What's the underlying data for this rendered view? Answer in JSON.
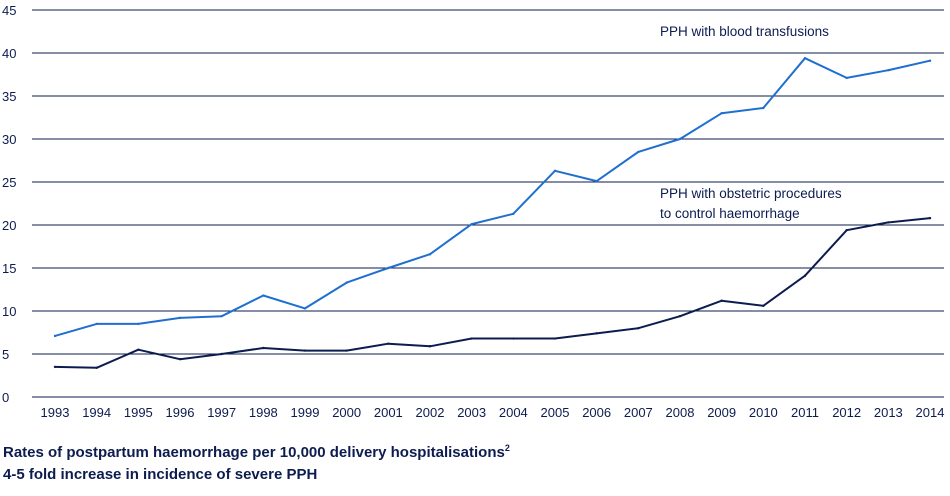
{
  "chart_data": {
    "type": "line",
    "x": [
      "1993",
      "1994",
      "1995",
      "1996",
      "1997",
      "1998",
      "1999",
      "2000",
      "2001",
      "2002",
      "2003",
      "2004",
      "2005",
      "2006",
      "2007",
      "2008",
      "2009",
      "2010",
      "2011",
      "2012",
      "2013",
      "2014"
    ],
    "yticks": [
      "0",
      "5",
      "10",
      "15",
      "20",
      "25",
      "30",
      "35",
      "40",
      "45"
    ],
    "ylim": [
      0,
      45
    ],
    "grid": true,
    "series": [
      {
        "name": "PPH with blood transfusions",
        "color": "#1f6fd1",
        "values": [
          7.1,
          8.5,
          8.5,
          9.2,
          9.4,
          11.8,
          10.3,
          13.3,
          15.0,
          16.6,
          20.1,
          21.3,
          26.3,
          25.1,
          28.5,
          30.0,
          33.0,
          33.6,
          39.4,
          37.1,
          38.0,
          39.1
        ]
      },
      {
        "name_lines": [
          "PPH with obstetric procedures",
          "to control haemorrhage"
        ],
        "color": "#0d1c4f",
        "values": [
          3.5,
          3.4,
          5.5,
          4.4,
          5.0,
          5.7,
          5.4,
          5.4,
          6.2,
          5.9,
          6.8,
          6.8,
          6.8,
          7.4,
          8.0,
          9.4,
          11.2,
          10.6,
          14.1,
          19.4,
          20.3,
          20.8
        ]
      }
    ]
  },
  "caption": {
    "line1": "Rates of postpartum haemorrhage per 10,000 delivery hospitalisations",
    "line1_sup": "2",
    "line2": "4-5 fold increase in incidence of severe PPH"
  }
}
